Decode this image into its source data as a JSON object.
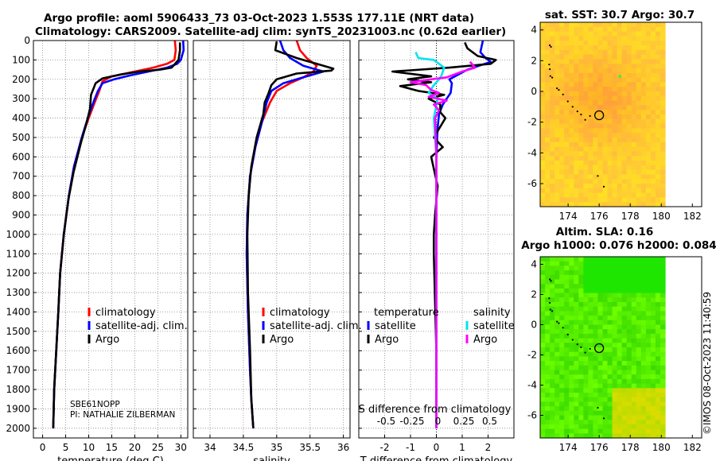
{
  "header": {
    "title_line1": "Argo profile: aoml 5906433_73 03-Oct-2023 1.553S 177.11E (NRT data)",
    "title_line2": "Climatology: CARS2009. Satellite-adj clim: synTS_20231003.nc (0.62d earlier)"
  },
  "side_label": "©IMOS 08-Oct-2023 11:40:59",
  "colors": {
    "climatology": "#ff0000",
    "satellite": "#0000ff",
    "argo": "#000000",
    "sal_satellite": "#00e5ee",
    "sal_argo": "#ff00ff"
  },
  "chart_data": [
    {
      "type": "line",
      "name": "temperature-profile",
      "xlabel": "temperature (deg C)",
      "ylabel": "",
      "xlim": [
        -2,
        31.5
      ],
      "ylim": [
        2050,
        0
      ],
      "xticks": [
        0,
        5,
        10,
        15,
        20,
        25,
        30
      ],
      "yticks": [
        0,
        100,
        200,
        300,
        400,
        500,
        600,
        700,
        800,
        900,
        1000,
        1100,
        1200,
        1300,
        1400,
        1500,
        1600,
        1700,
        1800,
        1900,
        2000
      ],
      "grid": true,
      "legend": [
        "climatology",
        "satellite-adj. clim.",
        "Argo"
      ],
      "annotation": [
        "SBE61NOPP",
        "PI: NATHALIE ZILBERMAN"
      ],
      "series": [
        {
          "name": "climatology",
          "color": "#ff0000",
          "x": [
            28.7,
            28.9,
            28.6,
            27,
            24,
            20,
            15,
            13,
            12.3,
            11.3,
            10,
            8.5,
            6.8,
            5.7,
            4.6,
            3.8,
            3.4,
            2.5,
            2.3
          ],
          "y": [
            0,
            50,
            100,
            120,
            140,
            160,
            185,
            210,
            260,
            320,
            400,
            500,
            650,
            800,
            1000,
            1200,
            1400,
            1800,
            2000
          ]
        },
        {
          "name": "satellite-adj. clim.",
          "color": "#0000ff",
          "x": [
            30.5,
            30.6,
            30,
            29.2,
            27,
            23,
            19,
            15.5,
            13,
            12,
            11,
            9.8,
            8.5,
            6.8,
            5.7,
            4.6,
            3.8,
            3.4,
            2.5,
            2.3
          ],
          "y": [
            0,
            50,
            100,
            120,
            140,
            160,
            180,
            200,
            220,
            260,
            320,
            400,
            500,
            650,
            800,
            1000,
            1200,
            1400,
            1800,
            2000
          ]
        },
        {
          "name": "Argo",
          "color": "#000000",
          "x": [
            29.8,
            29.8,
            29.5,
            28,
            25.5,
            21,
            17,
            13,
            11.5,
            11,
            10.5,
            10.3,
            9.6,
            8.4,
            6.7,
            5.6,
            4.6,
            3.8,
            3.4,
            2.5,
            2.3
          ],
          "y": [
            10,
            50,
            100,
            140,
            150,
            160,
            175,
            195,
            220,
            250,
            280,
            350,
            420,
            520,
            680,
            820,
            1000,
            1200,
            1400,
            1800,
            2000
          ]
        }
      ]
    },
    {
      "type": "line",
      "name": "salinity-profile",
      "xlabel": "salinity",
      "ylabel": "",
      "xlim": [
        33.75,
        36.1
      ],
      "ylim": [
        2050,
        0
      ],
      "xticks": [
        34,
        34.5,
        35,
        35.5,
        36
      ],
      "grid": true,
      "legend": [
        "climatology",
        "satellite-adj. clim.",
        "Argo"
      ],
      "series": [
        {
          "name": "climatology",
          "color": "#ff0000",
          "x": [
            35.3,
            35.35,
            35.45,
            35.6,
            35.55,
            35.4,
            35.2,
            35.0,
            34.9,
            34.78,
            34.68,
            34.6,
            34.56,
            34.55,
            34.57,
            34.6,
            34.62,
            34.65
          ],
          "y": [
            0,
            50,
            90,
            130,
            160,
            190,
            220,
            260,
            320,
            420,
            550,
            700,
            900,
            1100,
            1400,
            1700,
            1850,
            2000
          ]
        },
        {
          "name": "satellite-adj. clim.",
          "color": "#0000ff",
          "x": [
            35.05,
            35.1,
            35.2,
            35.4,
            35.7,
            35.4,
            35.1,
            34.92,
            34.85,
            34.78,
            34.68,
            34.6,
            34.56,
            34.55,
            34.57,
            34.6,
            34.62,
            34.65
          ],
          "y": [
            0,
            50,
            90,
            130,
            160,
            190,
            220,
            260,
            320,
            420,
            550,
            700,
            900,
            1100,
            1400,
            1700,
            1850,
            2000
          ]
        },
        {
          "name": "Argo",
          "color": "#000000",
          "x": [
            35.0,
            34.98,
            35.3,
            35.6,
            35.85,
            35.82,
            35.3,
            35.0,
            34.92,
            34.88,
            34.82,
            34.8,
            34.7,
            34.62,
            34.58,
            34.56,
            34.57,
            34.6,
            34.62,
            34.65
          ],
          "y": [
            5,
            50,
            90,
            120,
            145,
            155,
            170,
            200,
            230,
            270,
            320,
            380,
            500,
            650,
            800,
            1000,
            1300,
            1600,
            1850,
            2000
          ]
        }
      ]
    },
    {
      "type": "line",
      "name": "difference-profile",
      "xlabel": "T difference from climatology",
      "xlabel2": "S difference from climatology",
      "xlim": [
        -3,
        3
      ],
      "ylim": [
        2050,
        0
      ],
      "xticks": [
        -2,
        -1,
        0,
        1,
        2
      ],
      "xticks2": [
        "-0.5",
        "-0.25",
        "0",
        "0.25",
        "0.5"
      ],
      "grid": true,
      "legend_titles": [
        "temperature",
        "salinity"
      ],
      "legend": [
        "satellite",
        "Argo",
        "satellite",
        "Argo"
      ],
      "series": [
        {
          "name": "temperature satellite",
          "color": "#0000ff",
          "x": [
            1.8,
            1.7,
            1.9,
            2.1,
            1.2,
            0.5,
            0.6,
            0.55,
            0.4,
            0.25,
            0.1,
            0.05,
            0,
            0,
            0
          ],
          "y": [
            0,
            60,
            90,
            110,
            150,
            200,
            220,
            270,
            300,
            330,
            380,
            450,
            600,
            1000,
            2000
          ]
        },
        {
          "name": "temperature Argo",
          "color": "#000000",
          "x": [
            1.1,
            1.2,
            1.6,
            2.3,
            2.1,
            0.5,
            -1.7,
            -0.2,
            -1.1,
            -0.2,
            -1.4,
            -0.7,
            0.3,
            -0.3,
            0.15,
            0.15,
            0.35,
            -0.1,
            0.25,
            -0.2,
            0.05,
            -0.05,
            -0.1,
            -0.1,
            0,
            0
          ],
          "y": [
            10,
            40,
            80,
            100,
            120,
            140,
            160,
            185,
            200,
            215,
            235,
            260,
            280,
            300,
            330,
            370,
            400,
            500,
            550,
            600,
            750,
            900,
            1000,
            1100,
            1600,
            2000
          ]
        },
        {
          "name": "salinity satellite",
          "color": "#00e5ee",
          "x": [
            -0.8,
            -0.7,
            -0.1,
            0.3,
            0.2,
            0.1,
            -0.1,
            -0.3,
            0.05,
            -0.1,
            0,
            0
          ],
          "y": [
            60,
            90,
            100,
            140,
            180,
            200,
            230,
            270,
            300,
            400,
            600,
            2000
          ]
        },
        {
          "name": "salinity Argo",
          "color": "#ff00ff",
          "x": [
            1.3,
            1.5,
            1.0,
            0.4,
            -0.2,
            -1.0,
            -0.4,
            -0.2,
            0.1,
            -0.3,
            0.4,
            -0.1,
            0.1,
            -0.05,
            0,
            0
          ],
          "y": [
            110,
            140,
            160,
            190,
            200,
            215,
            230,
            255,
            270,
            290,
            310,
            330,
            360,
            400,
            600,
            2000
          ]
        }
      ]
    },
    {
      "type": "heatmap",
      "name": "sst-map",
      "title": "sat. SST: 30.7 Argo: 30.7",
      "xlim": [
        172.2,
        182.6
      ],
      "ylim": [
        -7.5,
        4.5
      ],
      "xticks": [
        174,
        176,
        178,
        180,
        182
      ],
      "yticks": [
        4,
        2,
        0,
        -2,
        -4,
        -6
      ],
      "colorscale": "yellow-orange",
      "argo_position": [
        177.11,
        -1.553
      ]
    },
    {
      "type": "heatmap",
      "name": "sla-map",
      "title": "Altim. SLA: 0.16",
      "subtitle": "Argo h1000: 0.076 h2000: 0.084",
      "xlim": [
        172.2,
        182.6
      ],
      "ylim": [
        -7.5,
        4.5
      ],
      "xticks": [
        174,
        176,
        178,
        180,
        182
      ],
      "yticks": [
        4,
        2,
        0,
        -2,
        -4,
        -6
      ],
      "colorscale": "green",
      "argo_position": [
        177.11,
        -1.553
      ]
    }
  ]
}
